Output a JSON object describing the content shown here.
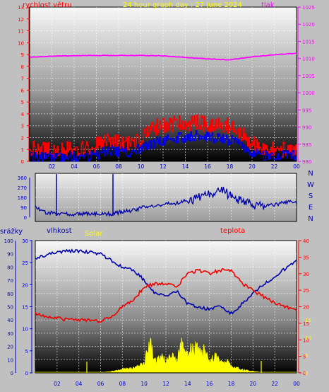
{
  "page": {
    "title": "24 hour graph day : 27 June 2024",
    "colors": {
      "background": "#c0c0c0",
      "title": "#ffff00",
      "wind": "#ff0000",
      "pressure": "#ff00ff",
      "direction": "#0000aa",
      "humidity": "#0000aa",
      "temperature": "#ff0000",
      "solar": "#ffff00",
      "rain": "#0000aa"
    }
  },
  "chart_data": [
    {
      "type": "line",
      "panel": "wind-pressure",
      "title": "24 hour graph day : 27 June 2024",
      "left_axis_label": "rychlost větru",
      "right_axis_label": "tlak",
      "x_ticks": [
        "02",
        "04",
        "06",
        "08",
        "10",
        "12",
        "14",
        "16",
        "18",
        "20",
        "22",
        "00"
      ],
      "left_ticks": [
        "0",
        "1",
        "2",
        "3",
        "4",
        "5",
        "6",
        "7",
        "8",
        "9",
        "10",
        "11",
        "12",
        "13"
      ],
      "right_ticks": [
        "980",
        "985",
        "990",
        "995",
        "1000",
        "1005",
        "1010",
        "1015",
        "1020",
        "1025"
      ],
      "ylim_left": [
        0,
        13
      ],
      "ylim_right": [
        980,
        1025
      ],
      "grid": true,
      "series": [
        {
          "name": "gust",
          "axis": "left",
          "x": [
            0,
            1,
            2,
            3,
            4,
            5,
            6,
            7,
            8,
            9,
            10,
            11,
            12,
            13,
            14,
            15,
            16,
            17,
            18,
            19,
            20,
            21,
            22,
            23,
            24
          ],
          "values": [
            1,
            1,
            1,
            1,
            1,
            1,
            1.3,
            1.8,
            1.5,
            1.5,
            1.8,
            2.8,
            3,
            3.2,
            3.2,
            3.3,
            3,
            3,
            3,
            2.3,
            1.5,
            1,
            1,
            1,
            1
          ]
        },
        {
          "name": "wind",
          "axis": "left",
          "x": [
            0,
            1,
            2,
            3,
            4,
            5,
            6,
            7,
            8,
            9,
            10,
            11,
            12,
            13,
            14,
            15,
            16,
            17,
            18,
            19,
            20,
            21,
            22,
            23,
            24
          ],
          "values": [
            0.3,
            0.3,
            0.3,
            0.3,
            0.4,
            0.3,
            0.5,
            1,
            0.8,
            0.8,
            1,
            1.5,
            1.8,
            2,
            2,
            2.2,
            2,
            1.9,
            1.8,
            1.3,
            0.8,
            0.5,
            0.5,
            0.5,
            0.5
          ]
        },
        {
          "name": "pressure",
          "axis": "right",
          "x": [
            0,
            2,
            4,
            6,
            8,
            10,
            12,
            14,
            16,
            18,
            20,
            22,
            24
          ],
          "values": [
            1010.4,
            1010.7,
            1010.8,
            1010.9,
            1010.9,
            1010.9,
            1010.8,
            1010.3,
            1009.9,
            1009.6,
            1010.5,
            1011.1,
            1011.5
          ]
        }
      ]
    },
    {
      "type": "line",
      "panel": "wind-direction",
      "left_ticks": [
        "0",
        "90",
        "180",
        "270",
        "360"
      ],
      "right_labels": [
        "N",
        "W",
        "S",
        "E",
        "N"
      ],
      "ylim": [
        0,
        360
      ],
      "series": [
        {
          "name": "direction",
          "x": [
            0,
            0.5,
            1,
            2,
            3,
            4,
            5,
            6,
            7,
            7.5,
            8,
            9,
            10,
            11,
            12,
            13,
            14,
            15,
            16,
            17,
            18,
            19,
            20,
            21,
            22,
            23,
            24
          ],
          "values": [
            90,
            60,
            45,
            30,
            30,
            30,
            30,
            30,
            30,
            40,
            50,
            60,
            90,
            110,
            120,
            130,
            150,
            180,
            200,
            250,
            200,
            150,
            120,
            100,
            110,
            140,
            140
          ]
        }
      ]
    },
    {
      "type": "line",
      "panel": "humidity-temperature-solar",
      "labels": {
        "rain": "srážky",
        "humidity": "vlhkost",
        "solar": "Solar",
        "temperature": "teplota"
      },
      "rain_ticks": [
        "0",
        "10",
        "20",
        "30",
        "40",
        "50",
        "60",
        "70",
        "80",
        "90",
        "100"
      ],
      "humidity_ticks": [
        "0",
        "5",
        "10",
        "15",
        "20",
        "25",
        "30"
      ],
      "temp_ticks": [
        "0",
        "5",
        "10",
        "15",
        "20",
        "25",
        "30",
        "35",
        "40"
      ],
      "solar_scale_ticks": [
        "0",
        "5",
        "10",
        "15"
      ],
      "ylim_rain": [
        0,
        100
      ],
      "ylim_humidity": [
        0,
        30
      ],
      "ylim_temperature": [
        0,
        40
      ],
      "series": [
        {
          "name": "humidity",
          "x": [
            0,
            1,
            2,
            3,
            4,
            5,
            6,
            7,
            8,
            9,
            10,
            11,
            12,
            13,
            14,
            15,
            16,
            17,
            18,
            19,
            20,
            21,
            22,
            23,
            24
          ],
          "values": [
            86,
            89,
            91,
            92,
            92,
            91,
            90,
            85,
            80,
            78,
            70,
            60,
            58,
            62,
            52,
            50,
            48,
            50,
            45,
            52,
            60,
            67,
            73,
            79,
            85
          ]
        },
        {
          "name": "temperature",
          "x": [
            0,
            1,
            2,
            3,
            4,
            5,
            6,
            7,
            8,
            9,
            10,
            11,
            12,
            13,
            14,
            15,
            16,
            17,
            18,
            19,
            20,
            21,
            22,
            23,
            24
          ],
          "values": [
            18,
            17,
            16.5,
            16,
            16,
            15.8,
            15.8,
            17,
            20,
            22,
            26,
            27,
            27,
            26,
            30,
            31,
            30,
            31,
            31,
            27,
            25,
            23,
            21,
            20,
            19
          ]
        },
        {
          "name": "solar",
          "x": [
            0,
            5,
            6,
            7,
            8,
            9,
            9.5,
            10,
            10.5,
            11,
            11.5,
            12,
            12.5,
            13,
            13.5,
            14,
            14.5,
            15,
            15.5,
            16,
            16.5,
            17,
            17.5,
            18,
            18.5,
            19,
            20,
            21,
            24
          ],
          "values": [
            0,
            0,
            0.1,
            0.4,
            1.2,
            1.5,
            2,
            3,
            10.5,
            4,
            5,
            4.5,
            5.5,
            4,
            11,
            6,
            9,
            7,
            8,
            3,
            6,
            3,
            4,
            2,
            1.5,
            1,
            0.5,
            0,
            0
          ]
        }
      ]
    }
  ]
}
